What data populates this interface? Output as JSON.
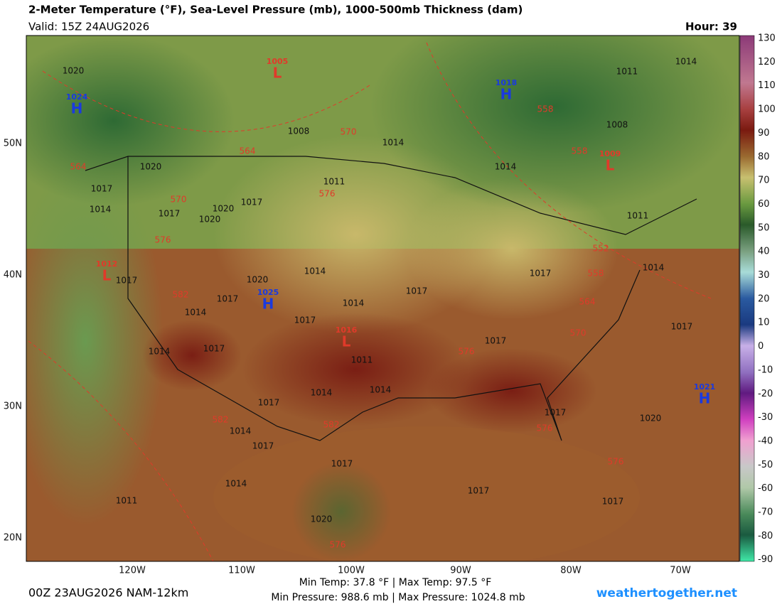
{
  "header": {
    "title": "2-Meter Temperature (°F), Sea-Level Pressure (mb), 1000-500mb Thickness (dam)",
    "valid": "Valid: 15Z 24AUG2026",
    "hour": "Hour: 39"
  },
  "map": {
    "pressure_centers": [
      {
        "letter": "H",
        "value": "1024"
      },
      {
        "letter": "L",
        "value": "1005"
      },
      {
        "letter": "H",
        "value": "1018"
      },
      {
        "letter": "L",
        "value": "1009"
      },
      {
        "letter": "L",
        "value": "1012"
      },
      {
        "letter": "H",
        "value": "1025"
      },
      {
        "letter": "L",
        "value": "1016"
      },
      {
        "letter": "H",
        "value": "1021"
      }
    ],
    "isobar_labels": [
      "1020",
      "1011",
      "1014",
      "1008",
      "1014",
      "1008",
      "1020",
      "1011",
      "1017",
      "1017",
      "1014",
      "1017",
      "1020",
      "1020",
      "1014",
      "1011",
      "1014",
      "1014",
      "1017",
      "1017",
      "1020",
      "1017",
      "1017",
      "1014",
      "1014",
      "1017",
      "1017",
      "1017",
      "1017",
      "1014",
      "1011",
      "1014",
      "1014",
      "1017",
      "1017",
      "1020",
      "1014",
      "1017",
      "1017",
      "1014",
      "1017",
      "1011",
      "1017",
      "1020"
    ],
    "thickness_labels": [
      "570",
      "564",
      "558",
      "558",
      "564",
      "576",
      "570",
      "576",
      "552",
      "558",
      "582",
      "564",
      "570",
      "576",
      "582",
      "582",
      "576",
      "576",
      "576"
    ],
    "lat_labels": [
      "50N",
      "40N",
      "30N",
      "20N"
    ],
    "lon_labels": [
      "120W",
      "110W",
      "100W",
      "90W",
      "80W",
      "70W"
    ]
  },
  "colorbar": {
    "ticks": [
      "130",
      "120",
      "110",
      "100",
      "90",
      "80",
      "70",
      "60",
      "50",
      "40",
      "30",
      "20",
      "10",
      "0",
      "-10",
      "-20",
      "-30",
      "-40",
      "-50",
      "-60",
      "-70",
      "-80",
      "-90"
    ]
  },
  "footer": {
    "temps": "Min Temp:  37.8 °F | Max Temp:  97.5 °F",
    "pressures": "Min Pressure: 988.6 mb | Max Pressure: 1024.8 mb",
    "run": "00Z 23AUG2026 NAM-12km",
    "site": "weathertogether.net"
  }
}
